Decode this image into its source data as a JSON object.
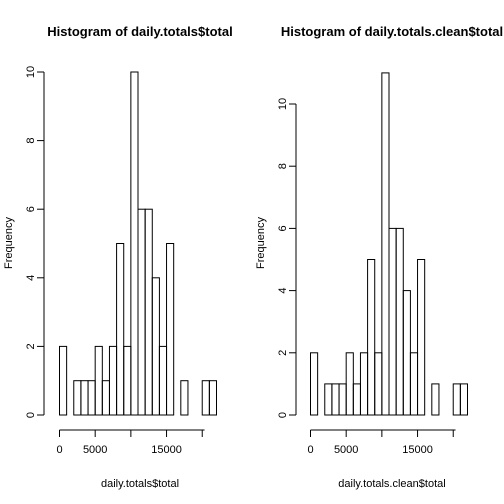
{
  "chart_data": [
    {
      "type": "bar",
      "title": "Histogram of daily.totals$total",
      "xlabel": "daily.totals$total",
      "ylabel": "Frequency",
      "xlim": [
        0,
        22000
      ],
      "ylim": [
        0,
        10
      ],
      "xticks": [
        0,
        5000,
        15000
      ],
      "yticks": [
        0,
        2,
        4,
        6,
        8,
        10
      ],
      "bin_width": 1000,
      "bins": [
        {
          "x0": 0,
          "x1": 1000,
          "value": 2
        },
        {
          "x0": 1000,
          "x1": 2000,
          "value": 0
        },
        {
          "x0": 2000,
          "x1": 3000,
          "value": 1
        },
        {
          "x0": 3000,
          "x1": 4000,
          "value": 1
        },
        {
          "x0": 4000,
          "x1": 5000,
          "value": 1
        },
        {
          "x0": 5000,
          "x1": 6000,
          "value": 2
        },
        {
          "x0": 6000,
          "x1": 7000,
          "value": 1
        },
        {
          "x0": 7000,
          "x1": 8000,
          "value": 2
        },
        {
          "x0": 8000,
          "x1": 9000,
          "value": 5
        },
        {
          "x0": 9000,
          "x1": 10000,
          "value": 2
        },
        {
          "x0": 10000,
          "x1": 11000,
          "value": 10
        },
        {
          "x0": 11000,
          "x1": 12000,
          "value": 6
        },
        {
          "x0": 12000,
          "x1": 13000,
          "value": 6
        },
        {
          "x0": 13000,
          "x1": 14000,
          "value": 4
        },
        {
          "x0": 14000,
          "x1": 15000,
          "value": 2
        },
        {
          "x0": 15000,
          "x1": 16000,
          "value": 5
        },
        {
          "x0": 16000,
          "x1": 17000,
          "value": 0
        },
        {
          "x0": 17000,
          "x1": 18000,
          "value": 1
        },
        {
          "x0": 18000,
          "x1": 19000,
          "value": 0
        },
        {
          "x0": 19000,
          "x1": 20000,
          "value": 0
        },
        {
          "x0": 20000,
          "x1": 21000,
          "value": 1
        },
        {
          "x0": 21000,
          "x1": 22000,
          "value": 1
        }
      ]
    },
    {
      "type": "bar",
      "title": "Histogram of daily.totals.clean$total",
      "xlabel": "daily.totals.clean$total",
      "ylabel": "Frequency",
      "xlim": [
        0,
        22000
      ],
      "ylim": [
        0,
        11
      ],
      "xticks": [
        0,
        5000,
        15000
      ],
      "yticks": [
        0,
        2,
        4,
        6,
        8,
        10
      ],
      "bin_width": 1000,
      "bins": [
        {
          "x0": 0,
          "x1": 1000,
          "value": 2
        },
        {
          "x0": 1000,
          "x1": 2000,
          "value": 0
        },
        {
          "x0": 2000,
          "x1": 3000,
          "value": 1
        },
        {
          "x0": 3000,
          "x1": 4000,
          "value": 1
        },
        {
          "x0": 4000,
          "x1": 5000,
          "value": 1
        },
        {
          "x0": 5000,
          "x1": 6000,
          "value": 2
        },
        {
          "x0": 6000,
          "x1": 7000,
          "value": 1
        },
        {
          "x0": 7000,
          "x1": 8000,
          "value": 2
        },
        {
          "x0": 8000,
          "x1": 9000,
          "value": 5
        },
        {
          "x0": 9000,
          "x1": 10000,
          "value": 2
        },
        {
          "x0": 10000,
          "x1": 11000,
          "value": 11
        },
        {
          "x0": 11000,
          "x1": 12000,
          "value": 6
        },
        {
          "x0": 12000,
          "x1": 13000,
          "value": 6
        },
        {
          "x0": 13000,
          "x1": 14000,
          "value": 4
        },
        {
          "x0": 14000,
          "x1": 15000,
          "value": 2
        },
        {
          "x0": 15000,
          "x1": 16000,
          "value": 5
        },
        {
          "x0": 16000,
          "x1": 17000,
          "value": 0
        },
        {
          "x0": 17000,
          "x1": 18000,
          "value": 1
        },
        {
          "x0": 18000,
          "x1": 19000,
          "value": 0
        },
        {
          "x0": 19000,
          "x1": 20000,
          "value": 0
        },
        {
          "x0": 20000,
          "x1": 21000,
          "value": 1
        },
        {
          "x0": 21000,
          "x1": 22000,
          "value": 1
        }
      ]
    }
  ]
}
